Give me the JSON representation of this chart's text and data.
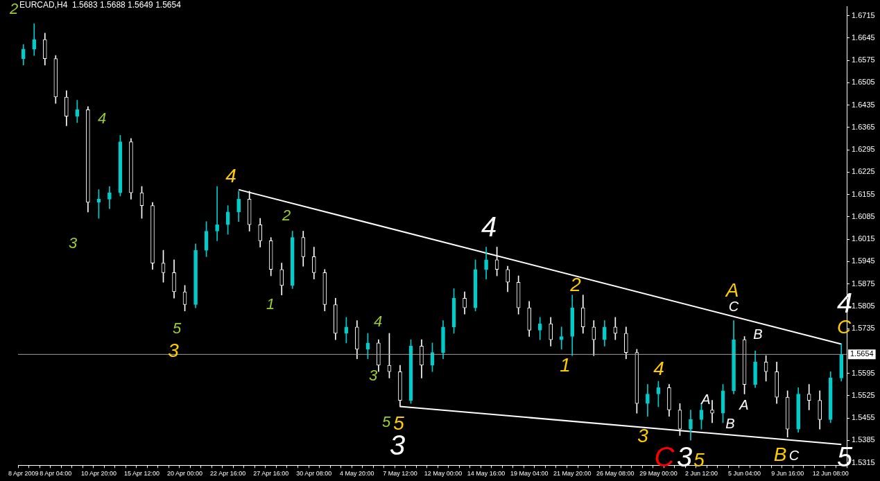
{
  "chart_data": {
    "type": "candlestick",
    "title": "EURCAD,H4  1.5683 1.5688 1.5649 1.5654",
    "categories": [
      "8 Apr 2009",
      null,
      null,
      "8 Apr 04:00",
      null,
      null,
      null,
      "10 Apr 20:00",
      null,
      null,
      null,
      "15 Apr 12:00",
      null,
      null,
      null,
      "20 Apr 00:00",
      null,
      null,
      null,
      "22 Apr 16:00",
      null,
      null,
      null,
      "27 Apr 16:00",
      null,
      null,
      null,
      "30 Apr 08:00",
      null,
      null,
      null,
      "4 May 20:00",
      null,
      null,
      null,
      "7 May 12:00",
      null,
      null,
      null,
      "12 May 00:00",
      null,
      null,
      null,
      "14 May 16:00",
      null,
      null,
      null,
      "19 May 04:00",
      null,
      null,
      null,
      "21 May 20:00",
      null,
      null,
      null,
      "26 May 08:00",
      null,
      null,
      null,
      "29 May 00:00",
      null,
      null,
      null,
      "2 Jun 12:00",
      null,
      null,
      null,
      "5 Jun 04:00",
      null,
      null,
      null,
      "9 Jun 16:00",
      null,
      null,
      null,
      "12 Jun 08:00",
      null
    ],
    "ohlc": [
      [
        1.658,
        1.6625,
        1.656,
        1.661
      ],
      [
        1.661,
        1.669,
        1.659,
        1.664
      ],
      [
        1.664,
        1.666,
        1.656,
        1.658
      ],
      [
        1.658,
        1.659,
        1.644,
        1.646
      ],
      [
        1.646,
        1.648,
        1.637,
        1.64
      ],
      [
        1.64,
        1.645,
        1.638,
        1.642
      ],
      [
        1.642,
        1.643,
        1.61,
        1.613
      ],
      [
        1.613,
        1.617,
        1.608,
        1.614
      ],
      [
        1.614,
        1.618,
        1.611,
        1.616
      ],
      [
        1.616,
        1.634,
        1.615,
        1.632
      ],
      [
        1.632,
        1.633,
        1.614,
        1.616
      ],
      [
        1.616,
        1.618,
        1.608,
        1.612
      ],
      [
        1.612,
        1.613,
        1.592,
        1.594
      ],
      [
        1.594,
        1.598,
        1.588,
        1.591
      ],
      [
        1.591,
        1.595,
        1.583,
        1.585
      ],
      [
        1.585,
        1.587,
        1.579,
        1.581
      ],
      [
        1.581,
        1.6,
        1.58,
        1.598
      ],
      [
        1.598,
        1.607,
        1.596,
        1.604
      ],
      [
        1.604,
        1.618,
        1.601,
        1.606
      ],
      [
        1.606,
        1.612,
        1.603,
        1.61
      ],
      [
        1.61,
        1.6165,
        1.607,
        1.614
      ],
      [
        1.614,
        1.6165,
        1.604,
        1.606
      ],
      [
        1.606,
        1.608,
        1.599,
        1.601
      ],
      [
        1.601,
        1.602,
        1.59,
        1.592
      ],
      [
        1.592,
        1.594,
        1.584,
        1.587
      ],
      [
        1.587,
        1.604,
        1.586,
        1.602
      ],
      [
        1.602,
        1.604,
        1.593,
        1.596
      ],
      [
        1.596,
        1.599,
        1.589,
        1.591
      ],
      [
        1.591,
        1.592,
        1.579,
        1.581
      ],
      [
        1.581,
        1.583,
        1.57,
        1.572
      ],
      [
        1.572,
        1.577,
        1.569,
        1.574
      ],
      [
        1.574,
        1.576,
        1.564,
        1.567
      ],
      [
        1.567,
        1.572,
        1.564,
        1.569
      ],
      [
        1.569,
        1.57,
        1.56,
        1.562
      ],
      [
        1.562,
        1.572,
        1.558,
        1.56
      ],
      [
        1.56,
        1.562,
        1.549,
        1.551
      ],
      [
        1.551,
        1.57,
        1.55,
        1.568
      ],
      [
        1.568,
        1.57,
        1.558,
        1.562
      ],
      [
        1.562,
        1.569,
        1.56,
        1.566
      ],
      [
        1.566,
        1.576,
        1.564,
        1.574
      ],
      [
        1.574,
        1.586,
        1.572,
        1.583
      ],
      [
        1.583,
        1.585,
        1.578,
        1.58
      ],
      [
        1.58,
        1.595,
        1.579,
        1.592
      ],
      [
        1.592,
        1.599,
        1.589,
        1.595
      ],
      [
        1.595,
        1.599,
        1.59,
        1.592
      ],
      [
        1.592,
        1.593,
        1.585,
        1.588
      ],
      [
        1.588,
        1.59,
        1.578,
        1.58
      ],
      [
        1.58,
        1.582,
        1.571,
        1.573
      ],
      [
        1.573,
        1.577,
        1.57,
        1.575
      ],
      [
        1.575,
        1.577,
        1.568,
        1.57
      ],
      [
        1.57,
        1.574,
        1.567,
        1.571
      ],
      [
        1.571,
        1.584,
        1.565,
        1.58
      ],
      [
        1.58,
        1.584,
        1.572,
        1.574
      ],
      [
        1.574,
        1.576,
        1.565,
        1.57
      ],
      [
        1.57,
        1.576,
        1.568,
        1.574
      ],
      [
        1.574,
        1.577,
        1.57,
        1.572
      ],
      [
        1.572,
        1.574,
        1.564,
        1.566
      ],
      [
        1.566,
        1.567,
        1.547,
        1.55
      ],
      [
        1.55,
        1.556,
        1.546,
        1.553
      ],
      [
        1.553,
        1.557,
        1.549,
        1.555
      ],
      [
        1.555,
        1.556,
        1.546,
        1.548
      ],
      [
        1.548,
        1.55,
        1.54,
        1.542
      ],
      [
        1.542,
        1.548,
        1.5385,
        1.545
      ],
      [
        1.545,
        1.55,
        1.542,
        1.548
      ],
      [
        1.548,
        1.551,
        1.544,
        1.547
      ],
      [
        1.547,
        1.556,
        1.544,
        1.554
      ],
      [
        1.554,
        1.576,
        1.553,
        1.57
      ],
      [
        1.57,
        1.571,
        1.553,
        1.556
      ],
      [
        1.556,
        1.5665,
        1.555,
        1.563
      ],
      [
        1.563,
        1.565,
        1.557,
        1.56
      ],
      [
        1.56,
        1.563,
        1.55,
        1.552
      ],
      [
        1.552,
        1.554,
        1.5395,
        1.542
      ],
      [
        1.542,
        1.555,
        1.541,
        1.553
      ],
      [
        1.553,
        1.556,
        1.548,
        1.551
      ],
      [
        1.551,
        1.554,
        1.542,
        1.545
      ],
      [
        1.545,
        1.56,
        1.544,
        1.558
      ],
      [
        1.558,
        1.5688,
        1.557,
        1.5654
      ]
    ],
    "colors": [
      "#00cccc",
      "#00cccc",
      "#ffffff",
      "#ffffff",
      "#ffffff",
      "#00cccc",
      "#ffffff",
      "#00cccc",
      "#00cccc",
      "#00cccc",
      "#ffffff",
      "#ffffff",
      "#ffffff",
      "#ffffff",
      "#ffffff",
      "#ffffff",
      "#00cccc",
      "#00cccc",
      "#00cccc",
      "#00cccc",
      "#00cccc",
      "#ffffff",
      "#ffffff",
      "#ffffff",
      "#ffffff",
      "#00cccc",
      "#ffffff",
      "#ffffff",
      "#ffffff",
      "#ffffff",
      "#00cccc",
      "#ffffff",
      "#00cccc",
      "#ffffff",
      "#ffffff",
      "#ffffff",
      "#00cccc",
      "#ffffff",
      "#00cccc",
      "#00cccc",
      "#00cccc",
      "#ffffff",
      "#00cccc",
      "#00cccc",
      "#ffffff",
      "#ffffff",
      "#ffffff",
      "#ffffff",
      "#00cccc",
      "#ffffff",
      "#00cccc",
      "#00cccc",
      "#ffffff",
      "#ffffff",
      "#00cccc",
      "#ffffff",
      "#ffffff",
      "#ffffff",
      "#00cccc",
      "#00cccc",
      "#ffffff",
      "#ffffff",
      "#00cccc",
      "#00cccc",
      "#ffffff",
      "#00cccc",
      "#00cccc",
      "#ffffff",
      "#00cccc",
      "#ffffff",
      "#ffffff",
      "#ffffff",
      "#00cccc",
      "#ffffff",
      "#ffffff",
      "#00cccc",
      "#00cccc"
    ],
    "series": [
      {
        "type": "line",
        "color": "#ffffff",
        "values": [
          null,
          null,
          null,
          null,
          null,
          null,
          null,
          null,
          null,
          null,
          null,
          null,
          null,
          null,
          null,
          null,
          null,
          null,
          null,
          null,
          1.617,
          null,
          null,
          null,
          null,
          null,
          null,
          null,
          null,
          null,
          null,
          null,
          null,
          null,
          null,
          null,
          null,
          null,
          null,
          null,
          null,
          null,
          null,
          null,
          null,
          null,
          null,
          null,
          null,
          null,
          null,
          null,
          null,
          null,
          null,
          null,
          null,
          null,
          null,
          null,
          null,
          null,
          null,
          null,
          null,
          null,
          null,
          null,
          null,
          null,
          null,
          null,
          null,
          null,
          null,
          null,
          1.5686
        ]
      },
      {
        "type": "line",
        "color": "#ffffff",
        "values": [
          null,
          null,
          null,
          null,
          null,
          null,
          null,
          null,
          null,
          null,
          null,
          null,
          null,
          null,
          null,
          null,
          null,
          null,
          null,
          null,
          null,
          null,
          null,
          null,
          null,
          null,
          null,
          null,
          null,
          null,
          null,
          null,
          null,
          null,
          null,
          1.5491,
          null,
          null,
          null,
          null,
          null,
          null,
          null,
          null,
          null,
          null,
          null,
          null,
          null,
          null,
          null,
          null,
          null,
          null,
          null,
          null,
          null,
          null,
          null,
          null,
          null,
          null,
          null,
          null,
          null,
          null,
          null,
          null,
          null,
          null,
          null,
          null,
          null,
          null,
          null,
          null,
          1.5372
        ]
      }
    ],
    "ylim": [
      1.5307,
      1.6743
    ],
    "yticks": [
      1.5315,
      1.5385,
      1.5455,
      1.5525,
      1.5595,
      1.5735,
      1.5805,
      1.5875,
      1.5945,
      1.6015,
      1.6085,
      1.6155,
      1.6225,
      1.6295,
      1.6365,
      1.6435,
      1.6505,
      1.6575,
      1.6645,
      1.6715
    ],
    "ref_lines": [
      {
        "axis": "y",
        "value": 1.5654,
        "label": "1.5654",
        "color": "#a0a0a0"
      }
    ],
    "grid": false,
    "legend": false,
    "annotations": [
      "2",
      "3",
      "4",
      "5",
      "1",
      "2",
      "4",
      "3",
      "5",
      "3",
      "4",
      "5",
      "2",
      "1",
      "4",
      "3",
      "5",
      "A",
      "B",
      "C",
      "C",
      "A",
      "B",
      "B",
      "A",
      "C",
      "4",
      "3",
      "3",
      "4",
      "5",
      "C"
    ]
  }
}
